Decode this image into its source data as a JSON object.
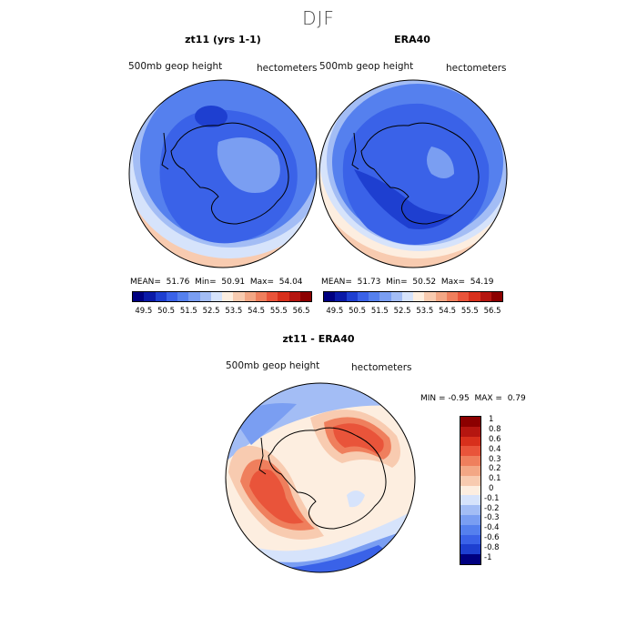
{
  "figure": {
    "title": "DJF"
  },
  "panels": [
    {
      "title": "zt11 (yrs 1-1)",
      "left_label": "500mb geop height",
      "right_label": "hectometers",
      "stats": {
        "mean_label": "MEAN=",
        "mean": "51.76",
        "min_label": "Min=",
        "min": "50.91",
        "max_label": "Max=",
        "max": "54.04"
      }
    },
    {
      "title": "ERA40",
      "left_label": "500mb geop height",
      "right_label": "hectometers",
      "stats": {
        "mean_label": "MEAN=",
        "mean": "51.73",
        "min_label": "Min=",
        "min": "50.52",
        "max_label": "Max=",
        "max": "54.19"
      }
    }
  ],
  "diff_panel": {
    "title": "zt11 - ERA40",
    "left_label": "500mb geop height",
    "right_label": "hectometers",
    "stats": {
      "min_label": "MIN =",
      "min": "-0.95",
      "max_label": "MAX =",
      "max": "0.79"
    }
  },
  "colorbar_h": {
    "colors": [
      "#000080",
      "#0a1aa8",
      "#1e3fd0",
      "#3a62e8",
      "#5580ee",
      "#7a9ef2",
      "#a3bdf5",
      "#d6e3fb",
      "#fdeee0",
      "#f8cbb0",
      "#f3a785",
      "#ef7f5d",
      "#e9543a",
      "#d8301c",
      "#b51610",
      "#8c0000"
    ],
    "ticks": [
      "49.5",
      "50.5",
      "51.5",
      "52.5",
      "53.5",
      "54.5",
      "55.5",
      "56.5"
    ]
  },
  "colorbar_v": {
    "colors": [
      "#8c0000",
      "#b51610",
      "#d8301c",
      "#e9543a",
      "#ef7f5d",
      "#f3a785",
      "#f8cbb0",
      "#fdeee0",
      "#d6e3fb",
      "#a3bdf5",
      "#7a9ef2",
      "#5580ee",
      "#3a62e8",
      "#1e3fd0",
      "#000080"
    ],
    "labels": [
      "1",
      "0.8",
      "0.6",
      "0.4",
      "0.3",
      "0.2",
      "0.1",
      "0",
      "-0.1",
      "-0.2",
      "-0.3",
      "-0.4",
      "-0.6",
      "-0.8",
      "-1"
    ]
  },
  "map_colors": {
    "ocean_low": "#f3a785",
    "light_blue": "#a3bdf5",
    "mid_blue": "#5580ee",
    "blue": "#3a62e8",
    "deep_blue": "#1e3fd0",
    "pale": "#d6e3fb",
    "cream": "#fdeee0",
    "red": "#e9543a",
    "dark_red": "#d8301c",
    "salmon": "#f8cbb0"
  }
}
